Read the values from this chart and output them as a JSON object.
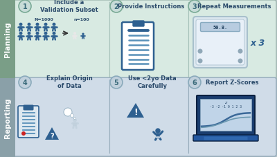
{
  "bg_top": "#d8eae2",
  "bg_bottom": "#d0dce8",
  "sidebar_top_color": "#7a9e87",
  "sidebar_bottom_color": "#8aa0a8",
  "border_color": "#a0b8c0",
  "circle_color_top": "#c8dcd8",
  "circle_color_bottom": "#c0d0dc",
  "circle_edge_top": "#7aaa96",
  "circle_edge_bottom": "#8aaabb",
  "circle_text_color": "#3a6a7a",
  "title_color": "#2a4a6a",
  "sidebar_text_color": "#ffffff",
  "icon_color": "#2e6090",
  "icon_color_light": "#5890b8",
  "planning_label": "Planning",
  "reporting_label": "Reporting",
  "top_items": [
    {
      "num": "1",
      "title": "Include a\nValidation Subset"
    },
    {
      "num": "2",
      "title": "Provide Instructions"
    },
    {
      "num": "3",
      "title": "Repeat Measurements"
    }
  ],
  "bottom_items": [
    {
      "num": "4",
      "title": "Explain Origin\nof Data"
    },
    {
      "num": "5",
      "title": "Use <2yo Data\nCarefully"
    },
    {
      "num": "6",
      "title": "Report Z-Scores"
    }
  ],
  "figure_width": 4.0,
  "figure_height": 2.28,
  "dpi": 100
}
